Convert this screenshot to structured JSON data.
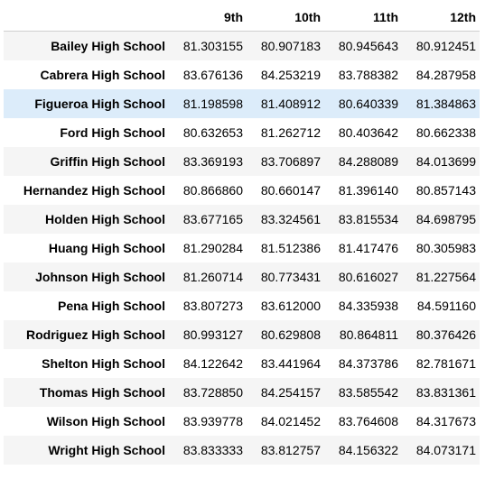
{
  "table": {
    "columns": [
      "9th",
      "10th",
      "11th",
      "12th"
    ],
    "rows": [
      {
        "school": "Bailey High School",
        "values": [
          "81.303155",
          "80.907183",
          "80.945643",
          "80.912451"
        ]
      },
      {
        "school": "Cabrera High School",
        "values": [
          "83.676136",
          "84.253219",
          "83.788382",
          "84.287958"
        ]
      },
      {
        "school": "Figueroa High School",
        "values": [
          "81.198598",
          "81.408912",
          "80.640339",
          "81.384863"
        ]
      },
      {
        "school": "Ford High School",
        "values": [
          "80.632653",
          "81.262712",
          "80.403642",
          "80.662338"
        ]
      },
      {
        "school": "Griffin High School",
        "values": [
          "83.369193",
          "83.706897",
          "84.288089",
          "84.013699"
        ]
      },
      {
        "school": "Hernandez High School",
        "values": [
          "80.866860",
          "80.660147",
          "81.396140",
          "80.857143"
        ]
      },
      {
        "school": "Holden High School",
        "values": [
          "83.677165",
          "83.324561",
          "83.815534",
          "84.698795"
        ]
      },
      {
        "school": "Huang High School",
        "values": [
          "81.290284",
          "81.512386",
          "81.417476",
          "80.305983"
        ]
      },
      {
        "school": "Johnson High School",
        "values": [
          "81.260714",
          "80.773431",
          "80.616027",
          "81.227564"
        ]
      },
      {
        "school": "Pena High School",
        "values": [
          "83.807273",
          "83.612000",
          "84.335938",
          "84.591160"
        ]
      },
      {
        "school": "Rodriguez High School",
        "values": [
          "80.993127",
          "80.629808",
          "80.864811",
          "80.376426"
        ]
      },
      {
        "school": "Shelton High School",
        "values": [
          "84.122642",
          "83.441964",
          "84.373786",
          "82.781671"
        ]
      },
      {
        "school": "Thomas High School",
        "values": [
          "83.728850",
          "84.254157",
          "83.585542",
          "83.831361"
        ]
      },
      {
        "school": "Wilson High School",
        "values": [
          "83.939778",
          "84.021452",
          "83.764608",
          "84.317673"
        ]
      },
      {
        "school": "Wright High School",
        "values": [
          "83.833333",
          "83.812757",
          "84.156322",
          "84.073171"
        ]
      }
    ],
    "highlighted_row": 2,
    "colors": {
      "stripe": "#f5f5f5",
      "highlight": "#dcecfa",
      "header_rule": "#cfcfcf"
    }
  }
}
